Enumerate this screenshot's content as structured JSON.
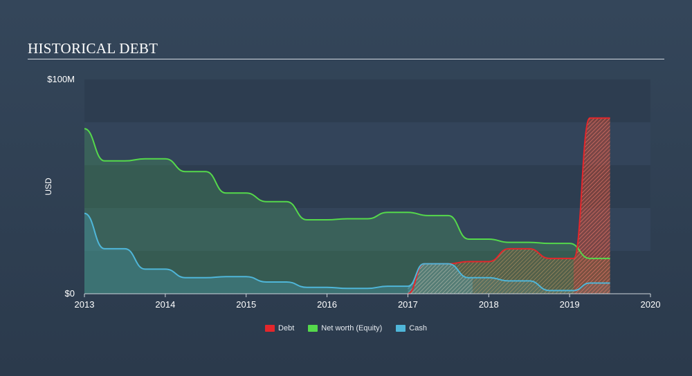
{
  "header": {
    "title": "HISTORICAL DEBT"
  },
  "chart_data": {
    "type": "area",
    "title": "HISTORICAL DEBT",
    "ylabel": "USD",
    "xlabel": "",
    "xlim": [
      2013,
      2020
    ],
    "ylim": [
      0,
      100
    ],
    "y_unit": "$M",
    "y_ticks": [
      {
        "value": 0,
        "label": "$0"
      },
      {
        "value": 100,
        "label": "$100M"
      }
    ],
    "x_ticks": [
      {
        "value": 2013,
        "label": "2013"
      },
      {
        "value": 2014,
        "label": "2014"
      },
      {
        "value": 2015,
        "label": "2015"
      },
      {
        "value": 2016,
        "label": "2016"
      },
      {
        "value": 2017,
        "label": "2017"
      },
      {
        "value": 2018,
        "label": "2018"
      },
      {
        "value": 2019,
        "label": "2019"
      },
      {
        "value": 2020,
        "label": "2020"
      }
    ],
    "legend_position": "bottom-center",
    "series": [
      {
        "name": "Debt",
        "color": "#e4262b",
        "points": [
          [
            2017.0,
            0
          ],
          [
            2017.2,
            14
          ],
          [
            2017.5,
            14
          ],
          [
            2017.75,
            15
          ],
          [
            2018.0,
            15
          ],
          [
            2018.25,
            21
          ],
          [
            2018.5,
            21
          ],
          [
            2018.75,
            16.5
          ],
          [
            2019.05,
            16.5
          ],
          [
            2019.25,
            82
          ],
          [
            2019.5,
            82
          ]
        ]
      },
      {
        "name": "Net worth (Equity)",
        "color": "#55d94b",
        "points": [
          [
            2013.0,
            77
          ],
          [
            2013.25,
            62
          ],
          [
            2013.5,
            62
          ],
          [
            2013.75,
            63
          ],
          [
            2014.0,
            63
          ],
          [
            2014.25,
            57
          ],
          [
            2014.5,
            57
          ],
          [
            2014.75,
            47
          ],
          [
            2015.0,
            47
          ],
          [
            2015.25,
            43
          ],
          [
            2015.5,
            43
          ],
          [
            2015.75,
            34.5
          ],
          [
            2016.0,
            34.5
          ],
          [
            2016.25,
            35
          ],
          [
            2016.5,
            35
          ],
          [
            2016.75,
            38
          ],
          [
            2017.0,
            38
          ],
          [
            2017.25,
            36.5
          ],
          [
            2017.5,
            36.5
          ],
          [
            2017.75,
            25.5
          ],
          [
            2018.0,
            25.5
          ],
          [
            2018.25,
            24
          ],
          [
            2018.5,
            24
          ],
          [
            2018.75,
            23.5
          ],
          [
            2019.0,
            23.5
          ],
          [
            2019.25,
            16.5
          ],
          [
            2019.5,
            16.5
          ]
        ]
      },
      {
        "name": "Cash",
        "color": "#4fb6d9",
        "points": [
          [
            2013.0,
            37.5
          ],
          [
            2013.25,
            21
          ],
          [
            2013.5,
            21
          ],
          [
            2013.75,
            11.5
          ],
          [
            2014.0,
            11.5
          ],
          [
            2014.25,
            7.5
          ],
          [
            2014.5,
            7.5
          ],
          [
            2014.75,
            8
          ],
          [
            2015.0,
            8
          ],
          [
            2015.25,
            5.5
          ],
          [
            2015.5,
            5.5
          ],
          [
            2015.75,
            3
          ],
          [
            2016.0,
            3
          ],
          [
            2016.25,
            2.5
          ],
          [
            2016.5,
            2.5
          ],
          [
            2016.75,
            3.5
          ],
          [
            2017.0,
            3.5
          ],
          [
            2017.2,
            14
          ],
          [
            2017.5,
            14
          ],
          [
            2017.75,
            7.5
          ],
          [
            2018.0,
            7.5
          ],
          [
            2018.25,
            6
          ],
          [
            2018.5,
            6
          ],
          [
            2018.75,
            1.5
          ],
          [
            2019.05,
            1.5
          ],
          [
            2019.25,
            5
          ],
          [
            2019.5,
            5
          ]
        ]
      }
    ]
  }
}
